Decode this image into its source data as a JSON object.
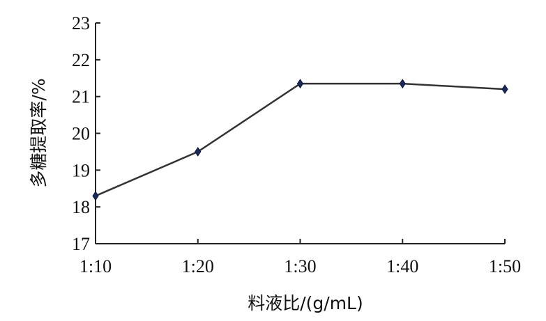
{
  "chart_data": {
    "type": "line",
    "categories": [
      "1:10",
      "1:20",
      "1:30",
      "1:40",
      "1:50"
    ],
    "series": [
      {
        "values": [
          18.3,
          19.5,
          21.35,
          21.35,
          21.2
        ]
      }
    ],
    "xlabel": "料液比/(g/mL)",
    "ylabel": "多糖提取率/%",
    "ylim": [
      17,
      23
    ],
    "yticks": [
      17,
      18,
      19,
      20,
      21,
      22,
      23
    ],
    "grid": false,
    "legend": "none",
    "colors": {
      "line": "#333333",
      "marker": "#1b2a5c"
    }
  }
}
